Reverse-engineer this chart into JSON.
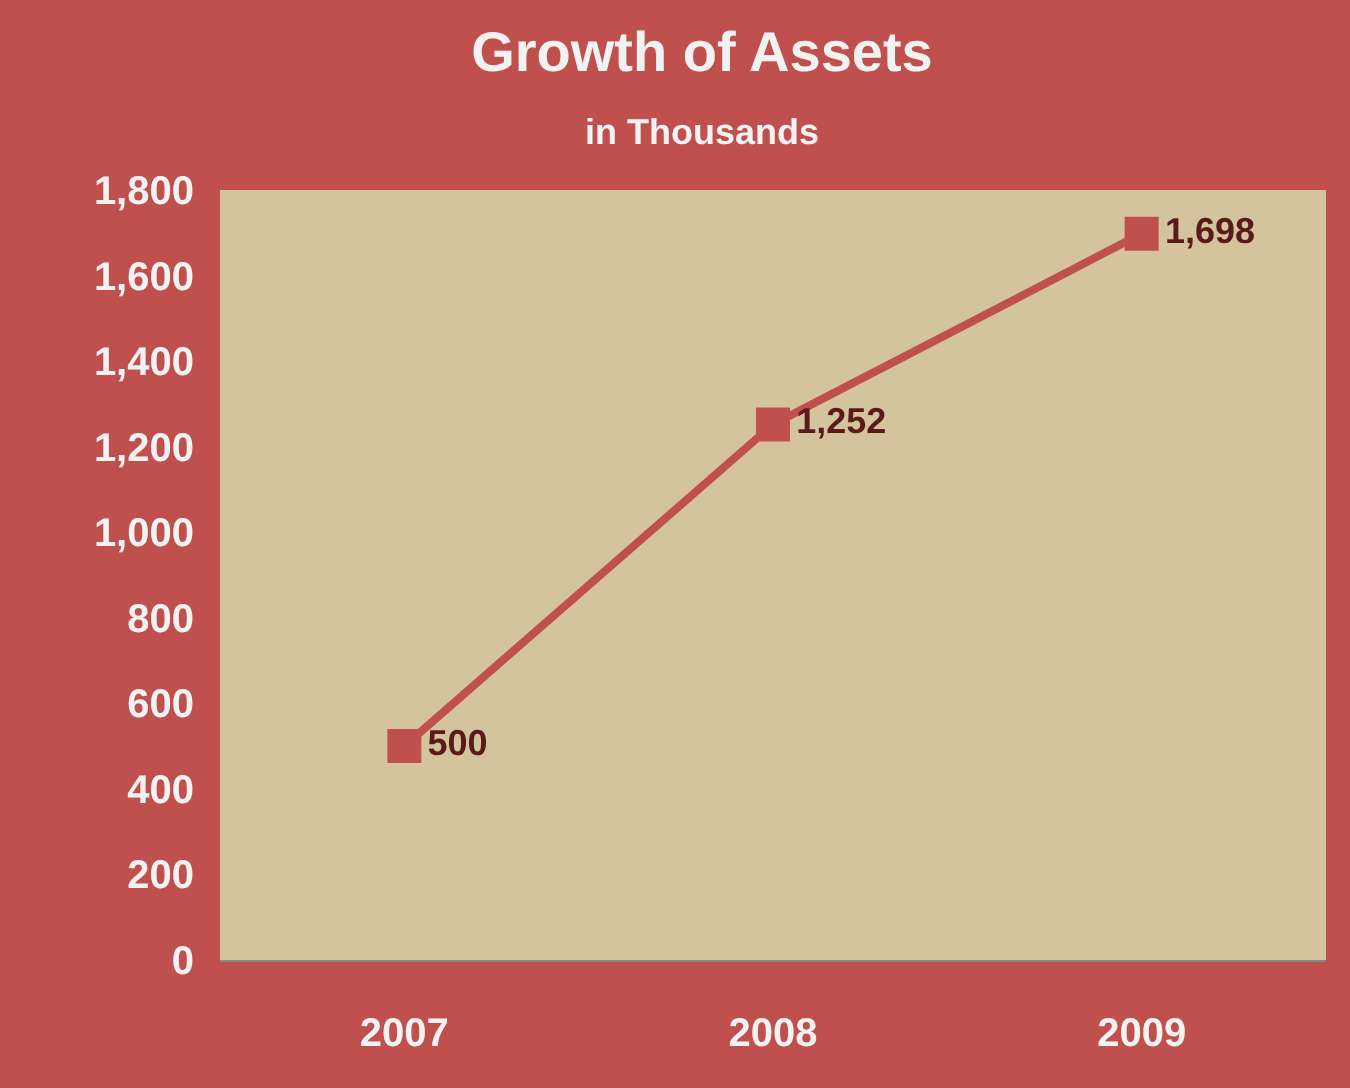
{
  "chart_data": {
    "type": "line",
    "title": "Growth of Assets",
    "subtitle": "in Thousands",
    "categories": [
      "2007",
      "2008",
      "2009"
    ],
    "series": [
      {
        "color": "#c0504d",
        "values": [
          500,
          1252,
          1698
        ],
        "value_labels": [
          "500",
          "1,252",
          "1,698"
        ]
      }
    ],
    "marker": "square",
    "line_style": "solid",
    "grid": false,
    "ylim": [
      0,
      1800
    ],
    "yticks": [
      0,
      200,
      400,
      600,
      800,
      {
        "value": 1000,
        "label": "1,000"
      },
      {
        "value": 1200,
        "label": "1,200"
      },
      {
        "value": 1400,
        "label": "1,400"
      },
      {
        "value": 1600,
        "label": "1,600"
      },
      {
        "value": 1800,
        "label": "1,800"
      }
    ]
  }
}
